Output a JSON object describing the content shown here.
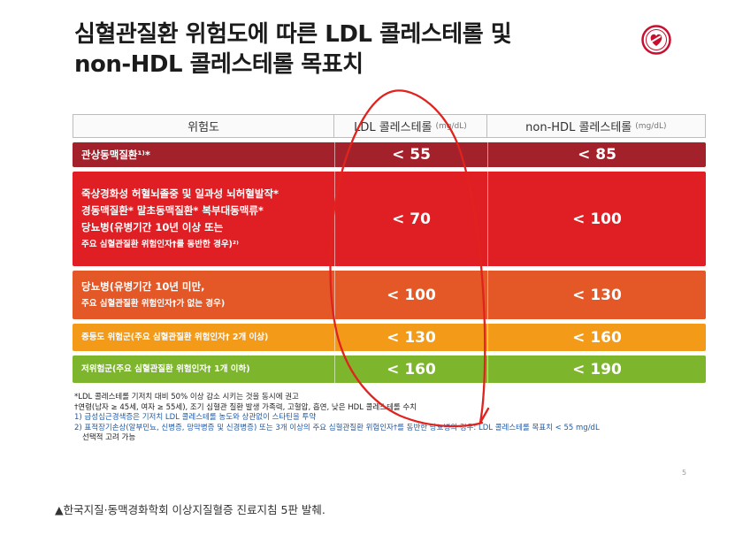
{
  "title_lines": [
    "심혈관질환 위험도에 따른 LDL 콜레스테롤 및",
    "non-HDL 콜레스테롤 목표치"
  ],
  "header": {
    "col1": "위험도",
    "col2": "LDL 콜레스테롤",
    "col2_unit": "(mg/dL)",
    "col3": "non-HDL 콜레스테롤",
    "col3_unit": "(mg/dL)"
  },
  "rows": [
    {
      "lines": [
        "관상동맥질환¹⁾*"
      ],
      "ldl": "< 55",
      "nonhdl": "< 85",
      "color": "#a3212b"
    },
    {
      "lines": [
        "죽상경화성 허혈뇌졸중 및 일과성 뇌허혈발작*",
        "경동맥질환* 말초동맥질환* 복부대동맥류*",
        "당뇨병(유병기간 10년 이상 또는",
        "주요 심혈관질환 위험인자†를 동반한 경우)²⁾"
      ],
      "ldl": "< 70",
      "nonhdl": "< 100",
      "color": "#e01f25"
    },
    {
      "lines": [
        "당뇨병(유병기간 10년 미만,",
        "주요 심혈관질환 위험인자†가 없는 경우)"
      ],
      "ldl": "< 100",
      "nonhdl": "< 130",
      "color": "#e35826"
    },
    {
      "lines": [
        "중등도 위험군(주요 심혈관질환 위험인자† 2개 이상)"
      ],
      "ldl": "< 130",
      "nonhdl": "< 160",
      "color": "#f39a18"
    },
    {
      "lines": [
        "저위험군(주요 심혈관질환 위험인자† 1개 이하)"
      ],
      "ldl": "< 160",
      "nonhdl": "< 190",
      "color": "#7db62c"
    }
  ],
  "notes": {
    "n1": "*LDL 콜레스테롤 기저치 대비 50% 이상 감소 시키는 것을 동시에 권고",
    "n2": "†연령(남자 ≥ 45세, 여자 ≥ 55세), 조기 심혈관 질환 발생 가족력, 고혈압, 흡연, 낮은 HDL 콜레스테롤 수치",
    "n3": "1) 급성심근경색증은 기저치 LDL 콜레스테롤 농도와 상관없이 스타틴을 투약",
    "n4": "2) 표적장기손상(알부민뇨, 신병증, 망막병증 및 신경병증) 또는 3개 이상의 주요 심혈관질환 위험인자†를 동반한 당뇨병의 경우: LDL 콜레스테롤 목표치 < 55 mg/dL",
    "n5": "선택적 고려 가능"
  },
  "page_number": "5",
  "caption": "▲한국지질·동맥경화학회 이상지질혈증 진료지침 5판 발췌.",
  "colors": {
    "annotation": "#e0231e"
  }
}
